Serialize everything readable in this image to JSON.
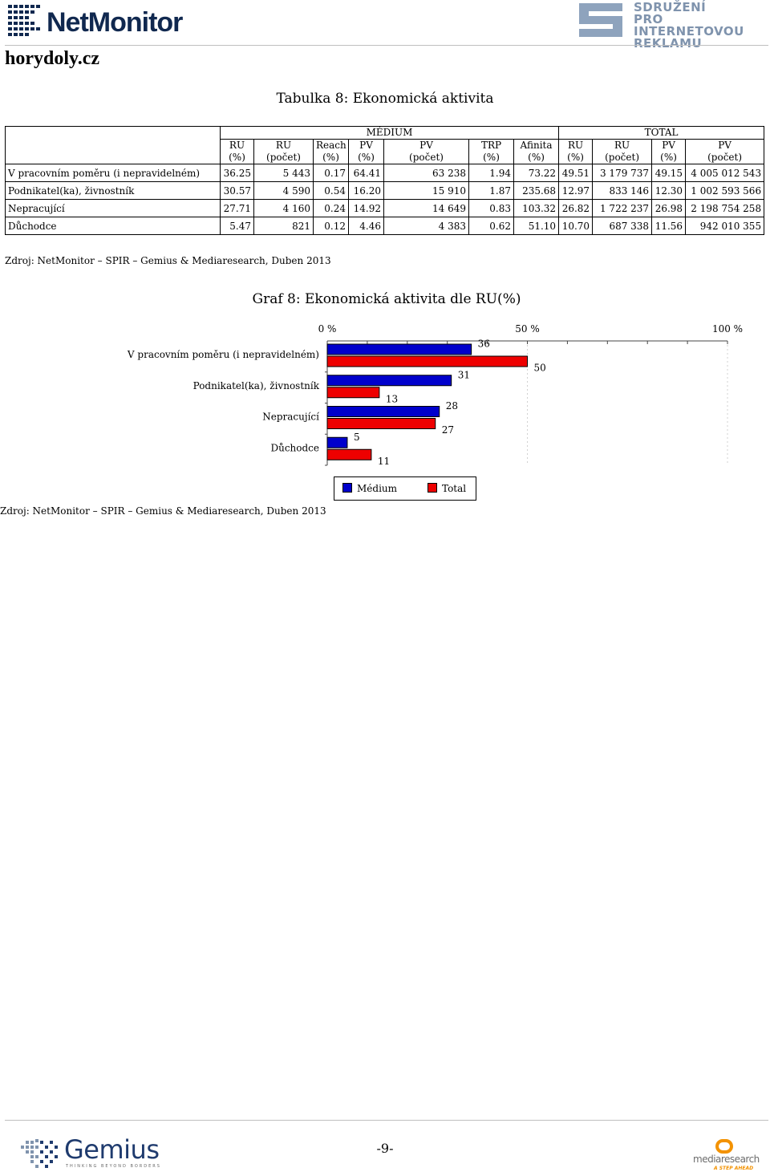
{
  "header": {
    "logo_text": "NetMonitor",
    "partner_logo_lines": [
      "SDRUŽENÍ",
      "PRO INTERNETOVOU",
      "REKLAMU"
    ],
    "site": "horydoly.cz"
  },
  "table": {
    "title": "Tabulka 8: Ekonomická aktivita",
    "group_medium": "MÉDIUM",
    "group_total": "TOTAL",
    "columns": [
      [
        "RU",
        "(%)"
      ],
      [
        "RU",
        "(počet)"
      ],
      [
        "Reach",
        "(%)"
      ],
      [
        "PV",
        "(%)"
      ],
      [
        "PV",
        "(počet)"
      ],
      [
        "TRP",
        "(%)"
      ],
      [
        "Afinita",
        "(%)"
      ],
      [
        "RU",
        "(%)"
      ],
      [
        "RU",
        "(počet)"
      ],
      [
        "PV",
        "(%)"
      ],
      [
        "PV",
        "(počet)"
      ]
    ],
    "rows": [
      {
        "label": "V pracovním poměru (i nepravidelném)",
        "cells": [
          "36.25",
          "5 443",
          "0.17",
          "64.41",
          "63 238",
          "1.94",
          "73.22",
          "49.51",
          "3 179 737",
          "49.15",
          "4 005 012 543"
        ]
      },
      {
        "label": "Podnikatel(ka), živnostník",
        "cells": [
          "30.57",
          "4 590",
          "0.54",
          "16.20",
          "15 910",
          "1.87",
          "235.68",
          "12.97",
          "833 146",
          "12.30",
          "1 002 593 566"
        ]
      },
      {
        "label": "Nepracující",
        "cells": [
          "27.71",
          "4 160",
          "0.24",
          "14.92",
          "14 649",
          "0.83",
          "103.32",
          "26.82",
          "1 722 237",
          "26.98",
          "2 198 754 258"
        ]
      },
      {
        "label": "Důchodce",
        "cells": [
          "5.47",
          "821",
          "0.12",
          "4.46",
          "4 383",
          "0.62",
          "51.10",
          "10.70",
          "687 338",
          "11.56",
          "942 010 355"
        ]
      }
    ],
    "source": "Zdroj: NetMonitor – SPIR – Gemius & Mediaresearch, Duben 2013"
  },
  "chart_data": {
    "type": "bar",
    "orientation": "horizontal",
    "title": "Graf 8: Ekonomická aktivita dle RU(%)",
    "categories": [
      "V pracovním poměru (i nepravidelném)",
      "Podnikatel(ka), živnostník",
      "Nepracující",
      "Důchodce"
    ],
    "series": [
      {
        "name": "Médium",
        "color": "#0000cc",
        "values": [
          36,
          31,
          28,
          5
        ]
      },
      {
        "name": "Total",
        "color": "#ee0000",
        "values": [
          50,
          13,
          27,
          11
        ]
      }
    ],
    "xlim": [
      0,
      100
    ],
    "x_ticks": [
      "0 %",
      "50 %",
      "100 %"
    ],
    "grid": true,
    "legend_position": "bottom"
  },
  "chart_source": "Zdroj: NetMonitor – SPIR – Gemius & Mediaresearch, Duben 2013",
  "footer": {
    "page_number": "-9-",
    "left_logo": "Gemius",
    "left_logo_tagline": "THINKING BEYOND BORDERS",
    "right_logo": "mediaresearch",
    "right_logo_tagline": "A STEP AHEAD"
  }
}
